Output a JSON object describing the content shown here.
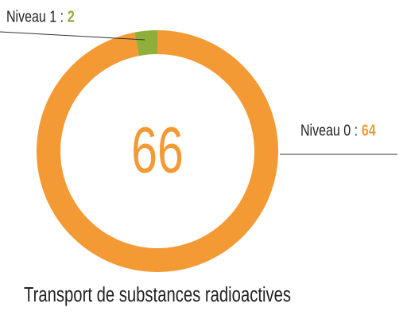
{
  "chart_data": {
    "type": "donut",
    "title": "Transport de substances radioactives",
    "total": 66,
    "categories": [
      "Niveau 0 :",
      "Niveau 1 :"
    ],
    "values": [
      64,
      2
    ],
    "colors": [
      "#f39a34",
      "#8fae3a"
    ]
  }
}
